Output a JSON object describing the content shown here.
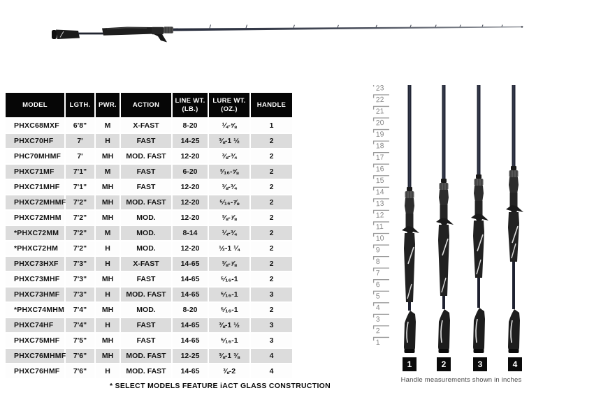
{
  "table": {
    "headers": [
      "MODEL",
      "LGTH.",
      "PWR.",
      "ACTION",
      "LINE WT.\n(LB.)",
      "LURE WT.\n(OZ.)",
      "HANDLE"
    ],
    "rows": [
      [
        "PHXC68MXF",
        "6'8\"",
        "M",
        "X-FAST",
        "8-20",
        "¼-⅝",
        "1"
      ],
      [
        "PHXC70HF",
        "7'",
        "H",
        "FAST",
        "14-25",
        "⅜-1 ½",
        "2"
      ],
      [
        "PHC70MHMF",
        "7'",
        "MH",
        "MOD. FAST",
        "12-20",
        "⅜-¾",
        "2"
      ],
      [
        "PHXC71MF",
        "7'1\"",
        "M",
        "FAST",
        "6-20",
        "³⁄₁₆-⅝",
        "2"
      ],
      [
        "PHXC71MHF",
        "7'1\"",
        "MH",
        "FAST",
        "12-20",
        "⅜-¾",
        "2"
      ],
      [
        "PHXC72MHMF",
        "7'2\"",
        "MH",
        "MOD. FAST",
        "12-20",
        "⁵⁄₁₆-⅞",
        "2"
      ],
      [
        "PHXC72MHM",
        "7'2\"",
        "MH",
        "MOD.",
        "12-20",
        "⅜-⅞",
        "2"
      ],
      [
        "*PHXC72MM",
        "7'2\"",
        "M",
        "MOD.",
        "8-14",
        "¼-¾",
        "2"
      ],
      [
        "*PHXC72HM",
        "7'2\"",
        "H",
        "MOD.",
        "12-20",
        "½-1 ¼",
        "2"
      ],
      [
        "PHXC73HXF",
        "7'3\"",
        "H",
        "X-FAST",
        "14-65",
        "⅜-⅞",
        "2"
      ],
      [
        "PHXC73MHF",
        "7'3\"",
        "MH",
        "FAST",
        "14-65",
        "⁵⁄₁₆-1",
        "2"
      ],
      [
        "PHXC73HMF",
        "7'3\"",
        "H",
        "MOD. FAST",
        "14-65",
        "⁵⁄₁₆-1",
        "3"
      ],
      [
        "*PHXC74MHM",
        "7'4\"",
        "MH",
        "MOD.",
        "8-20",
        "⁵⁄₁₆-1",
        "2"
      ],
      [
        "PHXC74HF",
        "7'4\"",
        "H",
        "FAST",
        "14-65",
        "⅜-1 ½",
        "3"
      ],
      [
        "PHXC75MHF",
        "7'5\"",
        "MH",
        "FAST",
        "14-65",
        "⁵⁄₁₆-1",
        "3"
      ],
      [
        "PHXC76MHMF",
        "7'6\"",
        "MH",
        "MOD. FAST",
        "12-25",
        "⅜-1 ⅜",
        "4"
      ],
      [
        "PHXC76HMF",
        "7'6\"",
        "H",
        "MOD. FAST",
        "14-65",
        "⅜-2",
        "4"
      ]
    ]
  },
  "footnote": "* SELECT MODELS FEATURE iACT GLASS CONSTRUCTION",
  "handle_panel": {
    "ruler": {
      "min": 1,
      "max": 23
    },
    "handles": [
      {
        "label": "1"
      },
      {
        "label": "2"
      },
      {
        "label": "3"
      },
      {
        "label": "4"
      }
    ],
    "caption": "Handle measurements shown in inches"
  },
  "colors": {
    "header_bg": "#060606",
    "row_alt": "#dcdcdc",
    "ruler_gray": "#9b9b9b",
    "blank_dark": "#222634"
  }
}
